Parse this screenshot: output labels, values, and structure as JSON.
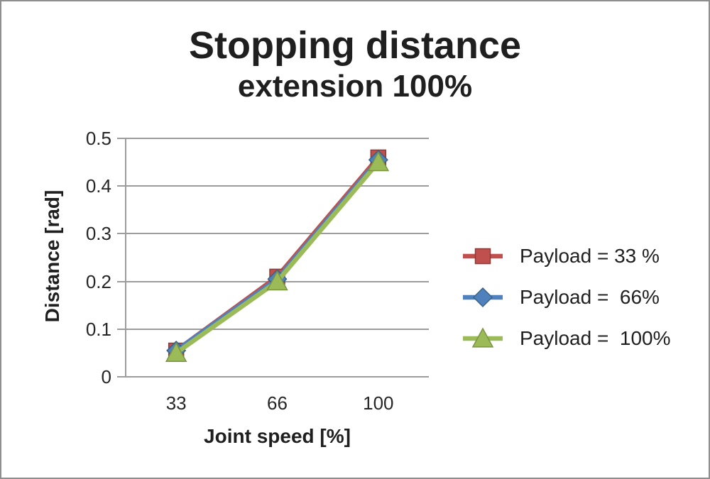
{
  "title": {
    "line1": "Stopping distance",
    "line2": "extension 100%"
  },
  "colors": {
    "grid": "#9c9c9c",
    "text": "#262626",
    "frame_border": "#8f8f8f",
    "background": "#ffffff"
  },
  "chart_data": {
    "type": "line",
    "title": "Stopping distance extension 100%",
    "categories": [
      33,
      66,
      100
    ],
    "xtick_labels": [
      "33",
      "66",
      "100"
    ],
    "xlabel": "Joint speed [%]",
    "ylabel": "Distance [rad]",
    "ylim": [
      0,
      0.5
    ],
    "ytick_step": 0.1,
    "yticks": [
      0,
      0.1,
      0.2,
      0.3,
      0.4,
      0.5
    ],
    "ytick_labels": [
      "0",
      "0.1",
      "0.2",
      "0.3",
      "0.4",
      "0.5"
    ],
    "grid": true,
    "legend_position": "right",
    "series": [
      {
        "name": "Payload = 33 %",
        "marker": "square",
        "color": "#C0504D",
        "edge": "#8e3b38",
        "values": [
          0.055,
          0.21,
          0.46
        ]
      },
      {
        "name": "Payload =  66%",
        "marker": "diamond",
        "color": "#4F81BD",
        "edge": "#3a6186",
        "values": [
          0.055,
          0.205,
          0.455
        ]
      },
      {
        "name": "Payload =  100%",
        "marker": "triangle",
        "color": "#9BBB59",
        "edge": "#7a9440",
        "values": [
          0.05,
          0.2,
          0.45
        ]
      }
    ]
  }
}
